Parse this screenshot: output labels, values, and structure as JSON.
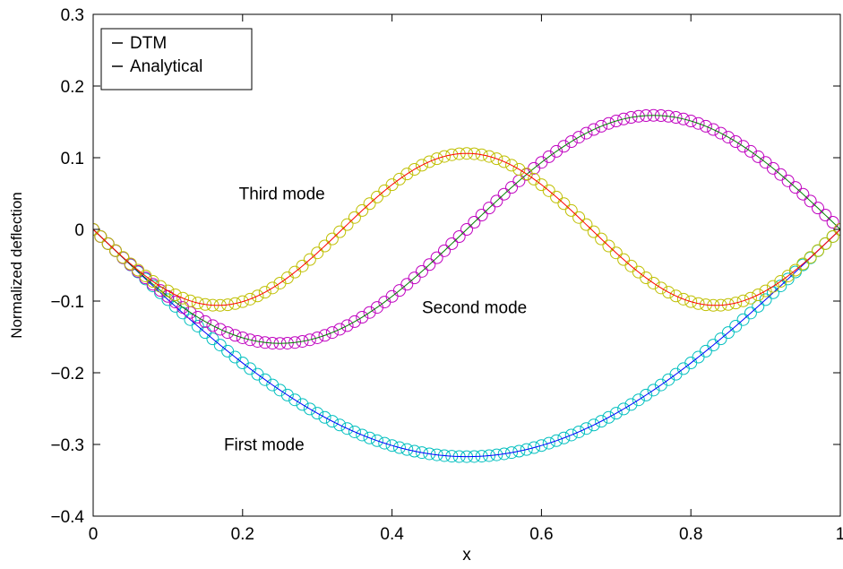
{
  "chart_data": {
    "type": "line",
    "xlabel": "x",
    "ylabel": "Normalized deflection",
    "xlim": [
      0,
      1
    ],
    "ylim": [
      -0.4,
      0.3
    ],
    "x_ticks": [
      0,
      0.2,
      0.4,
      0.6,
      0.8,
      1
    ],
    "x_tick_labels": [
      "0",
      "0.2",
      "0.4",
      "0.6",
      "0.8",
      "1"
    ],
    "y_ticks": [
      -0.4,
      -0.3,
      -0.2,
      -0.1,
      0,
      0.1,
      0.2,
      0.3
    ],
    "y_tick_labels": [
      "−0.4",
      "−0.3",
      "−0.2",
      "−0.1",
      "0",
      "0.1",
      "0.2",
      "0.3"
    ],
    "grid": false,
    "legend": {
      "placement": "top-left",
      "entries": [
        "DTM",
        "Analytical"
      ]
    },
    "sample_count": 101,
    "series": [
      {
        "mode": 1,
        "label": "First mode",
        "marker_color": "#00bfbf",
        "line_color": "#0000ff",
        "function": "-0.317*sin(pi*x)",
        "points": [
          [
            0,
            0
          ],
          [
            0.1,
            -0.098
          ],
          [
            0.2,
            -0.186
          ],
          [
            0.3,
            -0.256
          ],
          [
            0.4,
            -0.301
          ],
          [
            0.5,
            -0.317
          ],
          [
            0.6,
            -0.301
          ],
          [
            0.7,
            -0.256
          ],
          [
            0.8,
            -0.186
          ],
          [
            0.9,
            -0.098
          ],
          [
            1,
            0
          ]
        ]
      },
      {
        "mode": 2,
        "label": "Second mode",
        "marker_color": "#bf00bf",
        "line_color": "#008000",
        "function": "-0.159*sin(2*pi*x)",
        "points": [
          [
            0,
            0
          ],
          [
            0.1,
            -0.093
          ],
          [
            0.2,
            -0.151
          ],
          [
            0.25,
            -0.159
          ],
          [
            0.3,
            -0.151
          ],
          [
            0.4,
            -0.093
          ],
          [
            0.5,
            0
          ],
          [
            0.6,
            0.093
          ],
          [
            0.7,
            0.151
          ],
          [
            0.75,
            0.159
          ],
          [
            0.8,
            0.151
          ],
          [
            0.9,
            0.093
          ],
          [
            1,
            0
          ]
        ]
      },
      {
        "mode": 3,
        "label": "Third mode",
        "marker_color": "#bfbf00",
        "line_color": "#ff0000",
        "function": "-0.106*sin(3*pi*x)",
        "points": [
          [
            0,
            0
          ],
          [
            0.1,
            -0.086
          ],
          [
            0.1667,
            -0.106
          ],
          [
            0.2,
            -0.101
          ],
          [
            0.3,
            -0.033
          ],
          [
            0.4,
            0.062
          ],
          [
            0.5,
            0.106
          ],
          [
            0.6,
            0.062
          ],
          [
            0.7,
            -0.033
          ],
          [
            0.8,
            -0.101
          ],
          [
            0.8333,
            -0.106
          ],
          [
            0.9,
            -0.086
          ],
          [
            1,
            0
          ]
        ]
      }
    ]
  }
}
